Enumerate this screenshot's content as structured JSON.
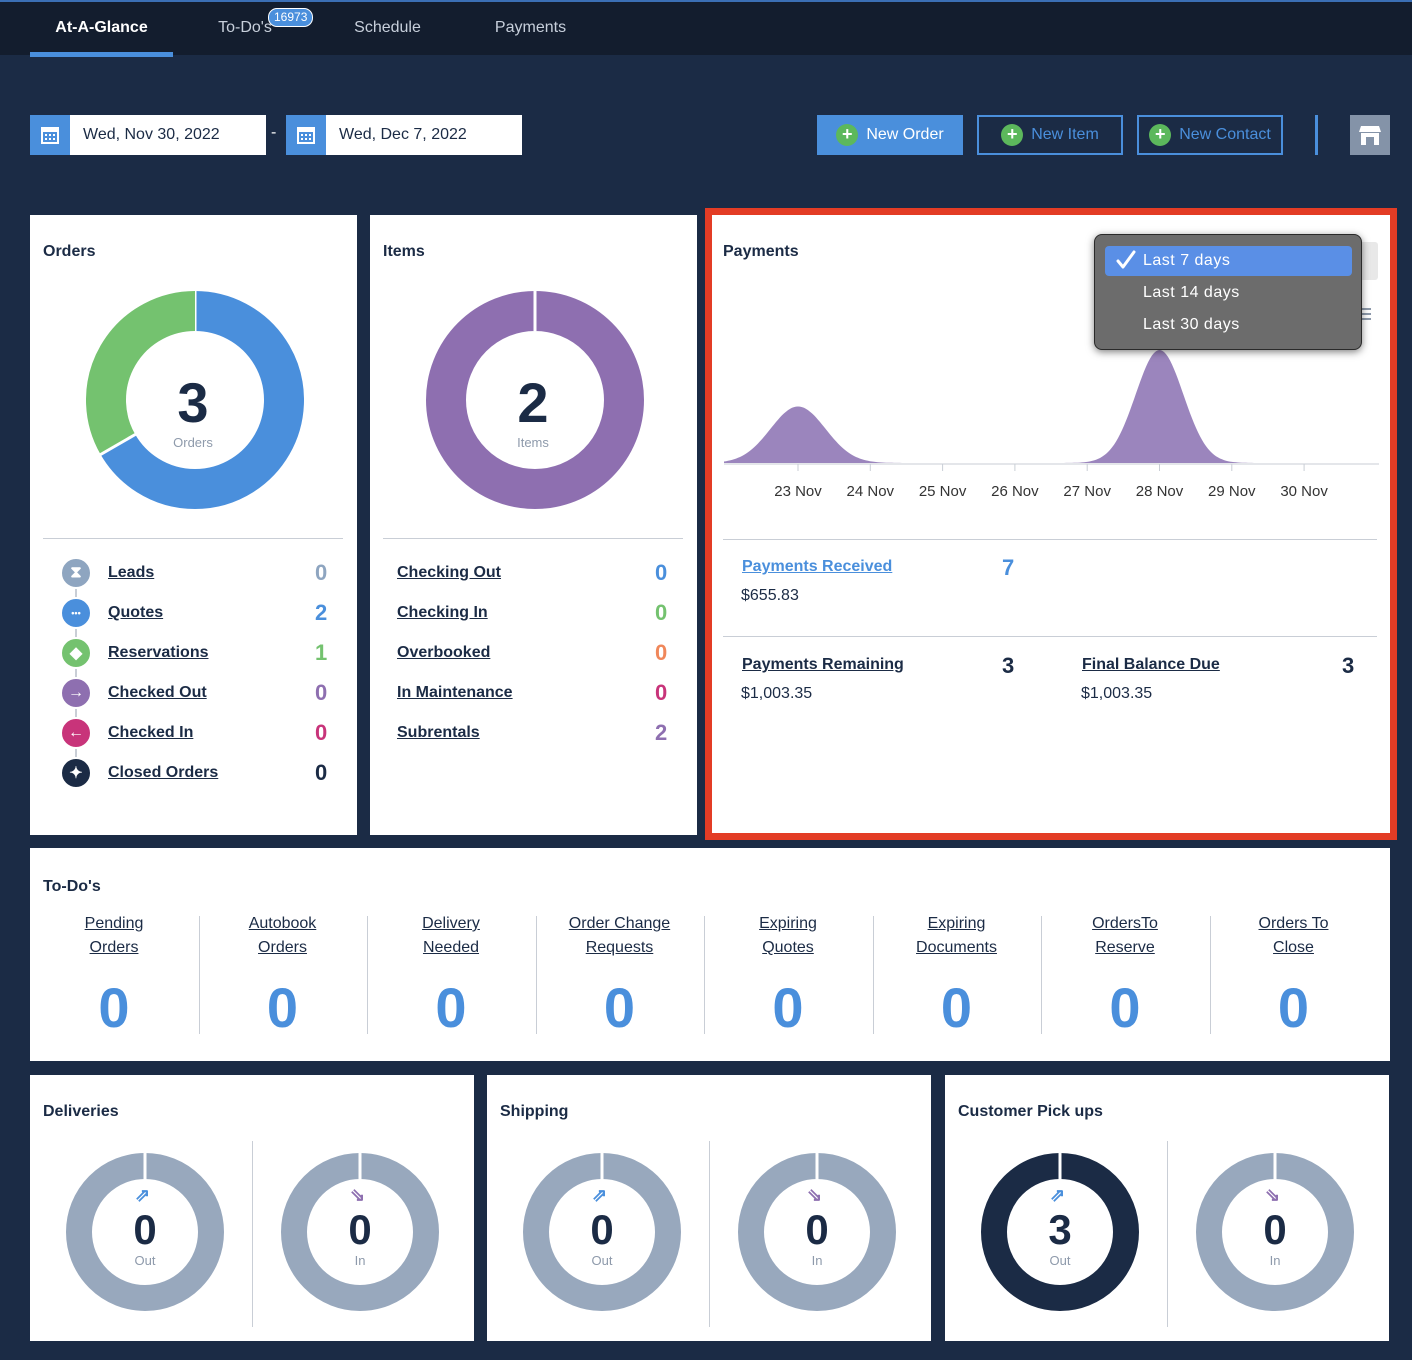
{
  "tabs": [
    {
      "label": "At-A-Glance"
    },
    {
      "label": "To-Do's",
      "badge": "16973"
    },
    {
      "label": "Schedule"
    },
    {
      "label": "Payments"
    }
  ],
  "dates": {
    "start": "Wed, Nov 30, 2022",
    "separator": "-",
    "end": "Wed, Dec 7, 2022"
  },
  "actions": {
    "new_order": "New Order",
    "new_item": "New Item",
    "new_contact": "New Contact"
  },
  "orders": {
    "title": "Orders",
    "total": "3",
    "total_label": "Orders",
    "donut": [
      {
        "label": "Quotes",
        "value": 2,
        "color": "#4a8fdc"
      },
      {
        "label": "Reservations",
        "value": 1,
        "color": "#74c26f"
      }
    ],
    "rows": [
      {
        "label": "Leads",
        "value": "0",
        "color": "#8ea5c0",
        "icon": "hourglass-icon"
      },
      {
        "label": "Quotes",
        "value": "2",
        "color": "#4a8fdc",
        "icon": "ellipsis-icon"
      },
      {
        "label": "Reservations",
        "value": "1",
        "color": "#74c26f",
        "icon": "tag-icon"
      },
      {
        "label": "Checked Out",
        "value": "0",
        "color": "#8e6fb0",
        "icon": "arrow-right-icon"
      },
      {
        "label": "Checked In",
        "value": "0",
        "color": "#c8347a",
        "icon": "arrow-left-icon"
      },
      {
        "label": "Closed Orders",
        "value": "0",
        "color": "#1b2b45",
        "icon": "gavel-icon"
      }
    ]
  },
  "items": {
    "title": "Items",
    "total": "2",
    "total_label": "Items",
    "rows": [
      {
        "label": "Checking Out",
        "value": "0",
        "color": "#4a8fdc"
      },
      {
        "label": "Checking In",
        "value": "0",
        "color": "#74c26f"
      },
      {
        "label": "Overbooked",
        "value": "0",
        "color": "#f0875a"
      },
      {
        "label": "In Maintenance",
        "value": "0",
        "color": "#c8347a"
      },
      {
        "label": "Subrentals",
        "value": "2",
        "color": "#8e6fb0"
      }
    ]
  },
  "payments": {
    "title": "Payments",
    "dropdown": {
      "options": [
        "Last 7 days",
        "Last 14 days",
        "Last 30 days"
      ],
      "selected": "Last 7 days"
    },
    "received": {
      "label": "Payments Received",
      "count": "7",
      "amount": "$655.83"
    },
    "remaining": {
      "label": "Payments Remaining",
      "count": "3",
      "amount": "$1,003.35"
    },
    "final_due": {
      "label": "Final Balance Due",
      "count": "3",
      "amount": "$1,003.35"
    }
  },
  "chart_data": {
    "type": "area",
    "categories": [
      "23 Nov",
      "24 Nov",
      "25 Nov",
      "26 Nov",
      "27 Nov",
      "28 Nov",
      "29 Nov",
      "30 Nov"
    ],
    "values": [
      1,
      0,
      0,
      0,
      0,
      2,
      0,
      0
    ],
    "title": "",
    "xlabel": "",
    "ylabel": "",
    "color": "#9b85bd"
  },
  "todos": {
    "title": "To-Do's",
    "items": [
      {
        "line1": "Pending",
        "line2": "Orders",
        "value": "0"
      },
      {
        "line1": "Autobook",
        "line2": "Orders",
        "value": "0"
      },
      {
        "line1": "Delivery",
        "line2": "Needed",
        "value": "0"
      },
      {
        "line1": "Order Change",
        "line2": "Requests",
        "value": "0"
      },
      {
        "line1": "Expiring",
        "line2": "Quotes",
        "value": "0"
      },
      {
        "line1": "Expiring",
        "line2": "Documents",
        "value": "0"
      },
      {
        "line1": "OrdersTo",
        "line2": "Reserve",
        "value": "0"
      },
      {
        "line1": "Orders To",
        "line2": "Close",
        "value": "0"
      }
    ]
  },
  "logistics": [
    {
      "title": "Deliveries",
      "out": {
        "value": "0",
        "label": "Out"
      },
      "in": {
        "value": "0",
        "label": "In"
      }
    },
    {
      "title": "Shipping",
      "out": {
        "value": "0",
        "label": "Out"
      },
      "in": {
        "value": "0",
        "label": "In"
      }
    },
    {
      "title": "Customer Pick ups",
      "out": {
        "value": "3",
        "label": "Out"
      },
      "in": {
        "value": "0",
        "label": "In"
      }
    }
  ]
}
